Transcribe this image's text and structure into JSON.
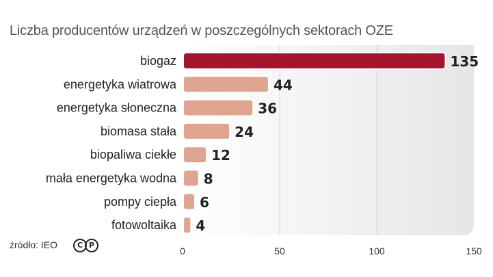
{
  "title": "Liczba producentów urządzeń w poszczególnych sektorach OZE",
  "source": "źródło: IEO",
  "logo": {
    "left": "C",
    "right": "P"
  },
  "colors": {
    "highlight_bar": "#a3162e",
    "bar": "#e0a590",
    "bar_border": "#ffffff",
    "plot_background": "#ededed",
    "grid": "#d8d8d8"
  },
  "chart_data": {
    "type": "bar",
    "orientation": "horizontal",
    "title": "Liczba producentów urządzeń w poszczególnych sektorach OZE",
    "categories": [
      "biogaz",
      "energetyka wiatrowa",
      "energetyka słoneczna",
      "biomasa stała",
      "biopaliwa ciekłe",
      "mała energetyka wodna",
      "pompy ciepła",
      "fotowoltaika"
    ],
    "values": [
      135,
      44,
      36,
      24,
      12,
      8,
      6,
      4
    ],
    "xlim": [
      0,
      150
    ],
    "xticks": [
      "0",
      "50",
      "100",
      "150"
    ],
    "grid": true
  }
}
